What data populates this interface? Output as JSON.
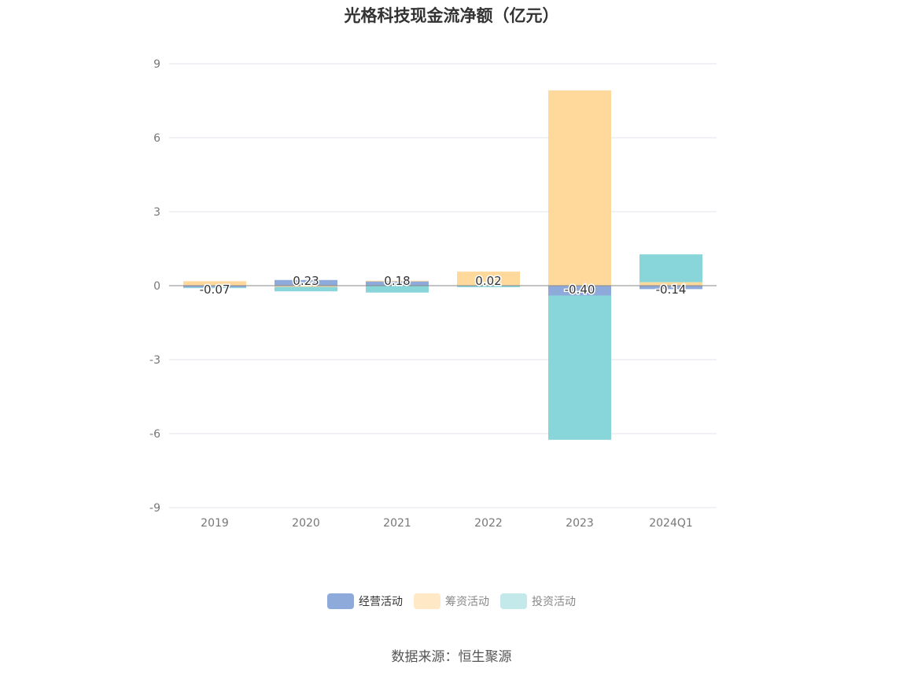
{
  "chart_data": {
    "type": "bar",
    "stacked": true,
    "title": "光格科技现金流净额（亿元）",
    "categories": [
      "2019",
      "2020",
      "2021",
      "2022",
      "2023",
      "2024Q1"
    ],
    "ylim": [
      -9,
      9
    ],
    "yticks": [
      9,
      6,
      3,
      0,
      -3,
      -6,
      -9
    ],
    "grid": true,
    "legend_position": "bottom",
    "series": [
      {
        "name": "经营活动",
        "color": "#8eaadb",
        "values": [
          -0.07,
          0.23,
          0.18,
          0.02,
          -0.4,
          -0.14
        ]
      },
      {
        "name": "筹资活动",
        "color": "#ffd99b",
        "values": [
          0.18,
          -0.05,
          0.02,
          0.55,
          7.92,
          0.14
        ]
      },
      {
        "name": "投资活动",
        "color": "#88d5da",
        "values": [
          -0.03,
          -0.18,
          -0.28,
          -0.06,
          -5.85,
          1.13
        ]
      }
    ],
    "data_labels": [
      "-0.07",
      "0.23",
      "0.18",
      "0.02",
      "-0.40",
      "-0.14"
    ]
  },
  "legend": [
    {
      "label": "经营活动",
      "color": "#8eaadb",
      "state": "active"
    },
    {
      "label": "筹资活动",
      "color": "#ffe8c6",
      "state": "inactive"
    },
    {
      "label": "投资活动",
      "color": "#c3e9eb",
      "state": "inactive"
    }
  ],
  "source": "数据来源：恒生聚源"
}
